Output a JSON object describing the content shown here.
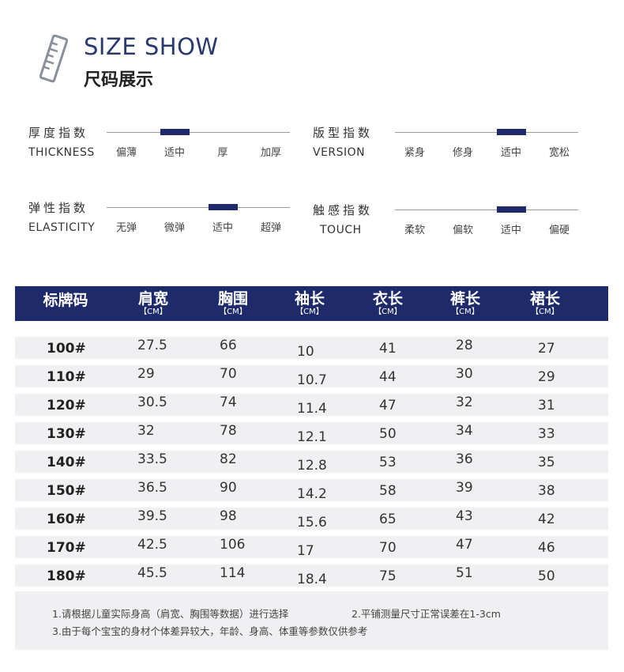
{
  "header": {
    "icon": "ruler-icon",
    "title_en": "SIZE SHOW",
    "title_cn": "尺码展示"
  },
  "indicators": [
    {
      "name_cn": "厚度指数",
      "name_en": "THICKNESS",
      "options": [
        "偏薄",
        "适中",
        "厚",
        "加厚"
      ],
      "level": 2
    },
    {
      "name_cn": "版型指数",
      "name_en": "VERSION",
      "options": [
        "紧身",
        "修身",
        "适中",
        "宽松"
      ],
      "level": 3
    },
    {
      "name_cn": "弹性指数",
      "name_en": "ELASTICITY",
      "options": [
        "无弹",
        "微弹",
        "适中",
        "超弹"
      ],
      "level": 3
    },
    {
      "name_cn": "触感指数",
      "name_en": "TOUCH",
      "options": [
        "柔软",
        "偏软",
        "适中",
        "偏硬"
      ],
      "level": 3
    }
  ],
  "table": {
    "columns": [
      {
        "label": "标牌码",
        "unit": ""
      },
      {
        "label": "肩宽",
        "unit": "【CM】"
      },
      {
        "label": "胸围",
        "unit": "【CM】"
      },
      {
        "label": "袖长",
        "unit": "【CM】"
      },
      {
        "label": "衣长",
        "unit": "【CM】"
      },
      {
        "label": "裤长",
        "unit": "【CM】"
      },
      {
        "label": "裙长",
        "unit": "【CM】"
      }
    ],
    "rows": [
      [
        "100#",
        "27.5",
        "66",
        "10",
        "41",
        "28",
        "27"
      ],
      [
        "110#",
        "29",
        "70",
        "10.7",
        "44",
        "30",
        "29"
      ],
      [
        "120#",
        "30.5",
        "74",
        "11.4",
        "47",
        "32",
        "31"
      ],
      [
        "130#",
        "32",
        "78",
        "12.1",
        "50",
        "34",
        "33"
      ],
      [
        "140#",
        "33.5",
        "82",
        "12.8",
        "53",
        "36",
        "35"
      ],
      [
        "150#",
        "36.5",
        "90",
        "14.2",
        "58",
        "39",
        "38"
      ],
      [
        "160#",
        "39.5",
        "98",
        "15.6",
        "65",
        "43",
        "42"
      ],
      [
        "170#",
        "42.5",
        "106",
        "17",
        "70",
        "47",
        "46"
      ],
      [
        "180#",
        "45.5",
        "114",
        "18.4",
        "75",
        "51",
        "50"
      ]
    ]
  },
  "notes": {
    "note1": "1.请根据儿童实际身高（肩宽、胸围等数据）进行选择",
    "note2": "2.平铺测量尺寸正常误差在1-3cm",
    "note3": "3.由于每个宝宝的身材个体差异较大，年龄、身高、体重等参数仅供参考"
  },
  "colors": {
    "accent": "#1f2a6b",
    "title": "#2b3a6e",
    "row_bg": "#f0f0f2"
  }
}
